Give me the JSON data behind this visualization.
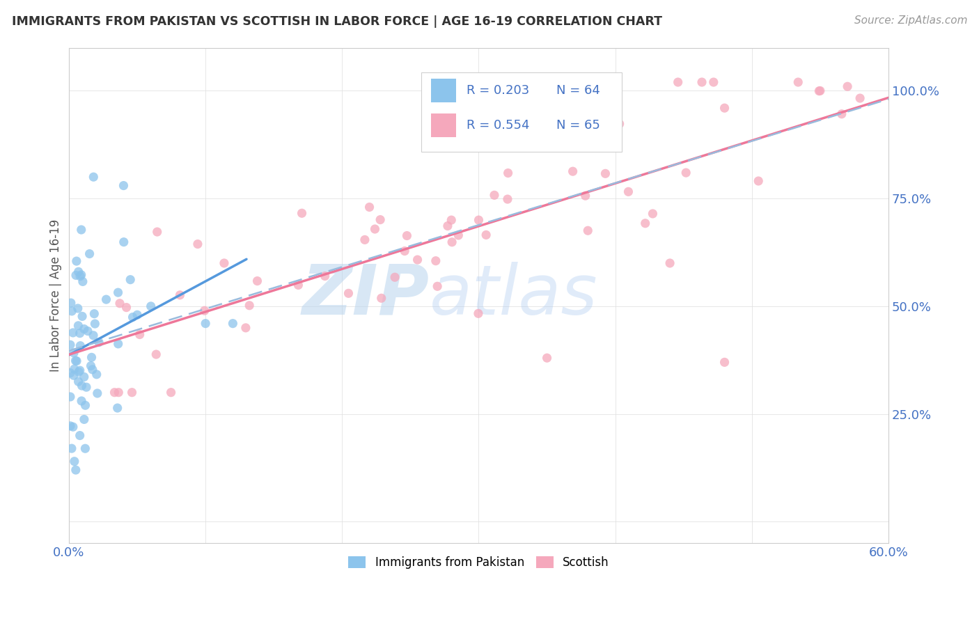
{
  "title": "IMMIGRANTS FROM PAKISTAN VS SCOTTISH IN LABOR FORCE | AGE 16-19 CORRELATION CHART",
  "source": "Source: ZipAtlas.com",
  "ylabel": "In Labor Force | Age 16-19",
  "xlim": [
    0.0,
    0.6
  ],
  "ylim": [
    -0.05,
    1.1
  ],
  "yticks": [
    0.0,
    0.25,
    0.5,
    0.75,
    1.0
  ],
  "yticklabels_right": [
    "",
    "25.0%",
    "50.0%",
    "75.0%",
    "100.0%"
  ],
  "xtick_first": "0.0%",
  "xtick_last": "60.0%",
  "legend_r1": "R = 0.203",
  "legend_n1": "N = 64",
  "legend_r2": "R = 0.554",
  "legend_n2": "N = 65",
  "color_pakistan": "#8CC4EC",
  "color_scottish": "#F5A8BC",
  "color_pakistan_line": "#5599DD",
  "color_scottish_line": "#EE7799",
  "color_dashed": "#99BBDD",
  "text_color_blue": "#4472C4",
  "background_color": "#ffffff",
  "watermark_zip": "ZIP",
  "watermark_atlas": "atlas",
  "grid_color": "#e0e0e0"
}
